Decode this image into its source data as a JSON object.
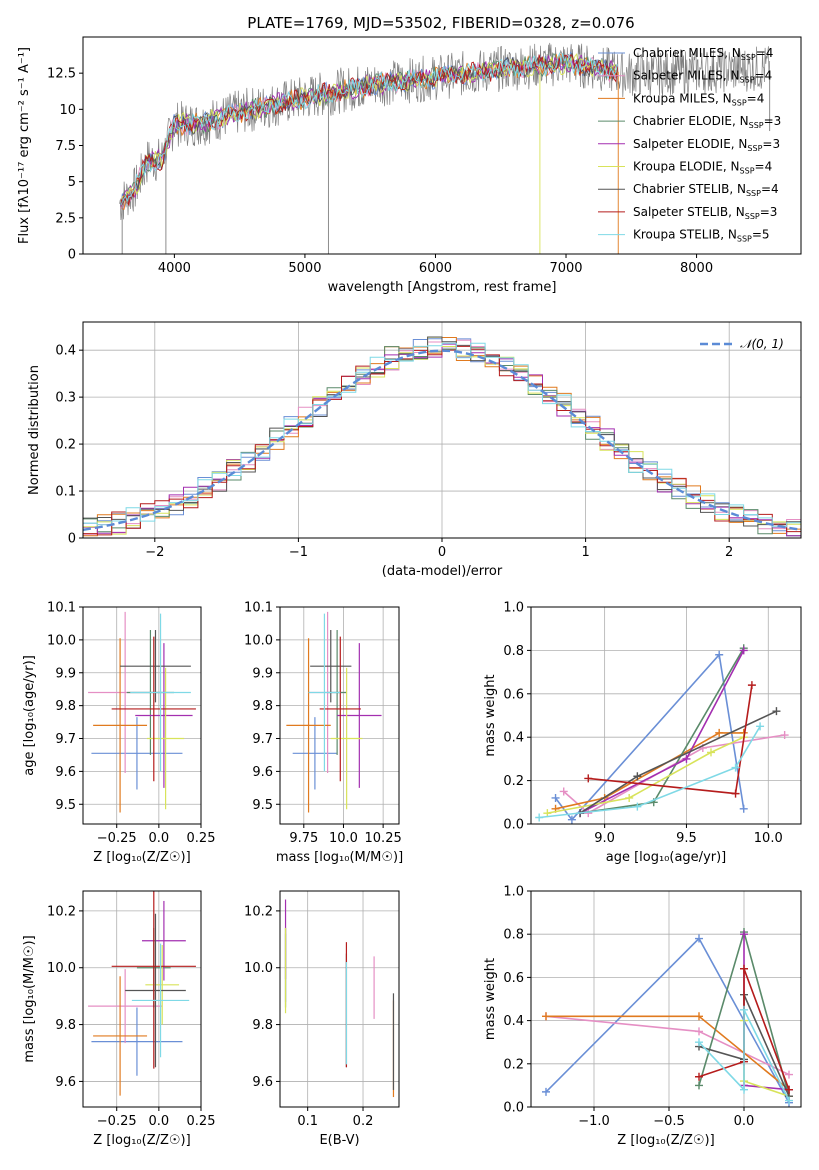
{
  "figure": {
    "title": "PLATE=1769, MJD=53502, FIBERID=0328, z=0.076"
  },
  "colors": {
    "Chabrier MILES": "#6a8fd6",
    "Salpeter MILES": "#e58fc4",
    "Kroupa MILES": "#e07a1f",
    "Chabrier ELODIE": "#5a8a6a",
    "Salpeter ELODIE": "#a32fb0",
    "Kroupa ELODIE": "#d8e35a",
    "Chabrier STELIB": "#555555",
    "Salpeter STELIB": "#b51c1c",
    "Kroupa STELIB": "#7fd9e6",
    "data": "#808080",
    "normal": "#5b8bd6"
  },
  "chart_data": [
    {
      "id": "spectrum",
      "type": "line",
      "xlabel": "wavelength [Angstrom, rest frame]",
      "ylabel": "Flux [f_λ 10^-17 erg cm^-2 s^-1 A^-1]",
      "xlim": [
        3300,
        8800
      ],
      "ylim": [
        0,
        15
      ],
      "xticks": [
        4000,
        5000,
        6000,
        7000,
        8000
      ],
      "yticks": [
        0.0,
        2.5,
        5.0,
        7.5,
        10.0,
        12.5
      ],
      "grid": false,
      "legend": "top-right",
      "legend_entries": [
        {
          "model": "Chabrier MILES",
          "nssp": "4"
        },
        {
          "model": "Salpeter MILES",
          "nssp": "4"
        },
        {
          "model": "Kroupa MILES",
          "nssp": "4"
        },
        {
          "model": "Chabrier ELODIE",
          "nssp": "3"
        },
        {
          "model": "Salpeter ELODIE",
          "nssp": "3"
        },
        {
          "model": "Kroupa ELODIE",
          "nssp": "4"
        },
        {
          "model": "Chabrier STELIB",
          "nssp": "4"
        },
        {
          "model": "Salpeter STELIB",
          "nssp": "3"
        },
        {
          "model": "Kroupa STELIB",
          "nssp": "5"
        }
      ],
      "continuum": {
        "x": [
          3580,
          3700,
          3800,
          3900,
          4000,
          4200,
          4500,
          5000,
          5500,
          6000,
          6500,
          7000,
          7400
        ],
        "y": [
          3.5,
          4.5,
          6.5,
          6.5,
          9.0,
          9.0,
          9.8,
          10.8,
          11.7,
          12.2,
          12.8,
          13.2,
          12.6
        ]
      },
      "features": [
        {
          "x": 3600,
          "y": 0.0,
          "series": "data"
        },
        {
          "x": 3935,
          "y": 0.0,
          "series": "data"
        },
        {
          "x": 5180,
          "y": 0.0,
          "series": "data"
        },
        {
          "x": 6800,
          "y": 0.0,
          "series": "Kroupa ELODIE"
        },
        {
          "x": 7400,
          "y": 0.0,
          "series": "Kroupa MILES"
        },
        {
          "x": 8560,
          "y": 8.5,
          "series": "data"
        }
      ]
    },
    {
      "id": "residuals",
      "type": "step",
      "xlabel": "(data-model)/error",
      "ylabel": "Normed distribution",
      "xlim": [
        -2.5,
        2.5
      ],
      "ylim": [
        0,
        0.46
      ],
      "xticks": [
        -2,
        -1,
        0,
        1,
        2
      ],
      "yticks": [
        0.0,
        0.1,
        0.2,
        0.3,
        0.4
      ],
      "grid": true,
      "legend": "top-right",
      "normal_label": "N(0,1)"
    },
    {
      "id": "age-vs-Z",
      "type": "errorbar",
      "xlabel": "Z [log10(Z/Z☉)]",
      "ylabel": "age [log10(age/yr)]",
      "xlim": [
        -0.45,
        0.25
      ],
      "ylim": [
        9.44,
        10.1
      ],
      "xticks": [
        -0.25,
        0.0,
        0.25
      ],
      "yticks": [
        9.5,
        9.6,
        9.7,
        9.8,
        9.9,
        10.0,
        10.1
      ],
      "grid": true,
      "points": [
        {
          "series": "Chabrier MILES",
          "x": -0.13,
          "xerr": 0.27,
          "y": 9.655,
          "yerr": 0.11
        },
        {
          "series": "Salpeter MILES",
          "x": -0.2,
          "xerr": 0.22,
          "y": 9.84,
          "yerr": 0.245
        },
        {
          "series": "Kroupa MILES",
          "x": -0.23,
          "xerr": 0.16,
          "y": 9.74,
          "yerr": 0.265
        },
        {
          "series": "Chabrier ELODIE",
          "x": -0.05,
          "xerr": 0.14,
          "y": 9.84,
          "yerr": 0.19
        },
        {
          "series": "Salpeter ELODIE",
          "x": 0.03,
          "xerr": 0.17,
          "y": 9.77,
          "yerr": 0.22
        },
        {
          "series": "Kroupa ELODIE",
          "x": 0.04,
          "xerr": 0.11,
          "y": 9.7,
          "yerr": 0.215
        },
        {
          "series": "Chabrier STELIB",
          "x": -0.02,
          "xerr": 0.21,
          "y": 9.92,
          "yerr": 0.11
        },
        {
          "series": "Salpeter STELIB",
          "x": -0.03,
          "xerr": 0.25,
          "y": 9.79,
          "yerr": 0.22
        },
        {
          "series": "Kroupa STELIB",
          "x": 0.01,
          "xerr": 0.18,
          "y": 9.84,
          "yerr": 0.24
        }
      ]
    },
    {
      "id": "age-vs-mass",
      "type": "errorbar",
      "xlabel": "mass [log10(M/M☉)]",
      "ylabel": "",
      "xlim": [
        9.6,
        10.35
      ],
      "ylim": [
        9.44,
        10.1
      ],
      "xticks": [
        9.75,
        10.0,
        10.25
      ],
      "yticks": [
        9.5,
        9.6,
        9.7,
        9.8,
        9.9,
        10.0,
        10.1
      ],
      "grid": true,
      "points": [
        {
          "series": "Chabrier MILES",
          "x": 9.82,
          "xerr": 0.14,
          "y": 9.655,
          "yerr": 0.11
        },
        {
          "series": "Salpeter MILES",
          "x": 9.9,
          "xerr": 0.12,
          "y": 9.84,
          "yerr": 0.245
        },
        {
          "series": "Kroupa MILES",
          "x": 9.78,
          "xerr": 0.14,
          "y": 9.74,
          "yerr": 0.265
        },
        {
          "series": "Chabrier ELODIE",
          "x": 9.96,
          "xerr": 0.06,
          "y": 9.84,
          "yerr": 0.19
        },
        {
          "series": "Salpeter ELODIE",
          "x": 10.1,
          "xerr": 0.14,
          "y": 9.77,
          "yerr": 0.22
        },
        {
          "series": "Kroupa ELODIE",
          "x": 10.02,
          "xerr": 0.1,
          "y": 9.7,
          "yerr": 0.215
        },
        {
          "series": "Chabrier STELIB",
          "x": 9.92,
          "xerr": 0.13,
          "y": 9.92,
          "yerr": 0.11
        },
        {
          "series": "Salpeter STELIB",
          "x": 9.98,
          "xerr": 0.13,
          "y": 9.79,
          "yerr": 0.22
        },
        {
          "series": "Kroupa STELIB",
          "x": 9.88,
          "xerr": 0.1,
          "y": 9.84,
          "yerr": 0.24
        }
      ]
    },
    {
      "id": "weight-vs-age",
      "type": "line",
      "xlabel": "age  [log10(age/yr)]",
      "ylabel": "mass weight",
      "xlim": [
        8.55,
        10.2
      ],
      "ylim": [
        0.0,
        1.0
      ],
      "xticks": [
        9.0,
        9.5,
        10.0
      ],
      "yticks": [
        0.0,
        0.2,
        0.4,
        0.6,
        0.8,
        1.0
      ],
      "grid": true,
      "series": [
        {
          "series": "Chabrier MILES",
          "x": [
            8.7,
            8.8,
            9.7,
            9.85
          ],
          "y": [
            0.12,
            0.02,
            0.78,
            0.07
          ]
        },
        {
          "series": "Salpeter MILES",
          "x": [
            8.75,
            8.9,
            9.6,
            10.1
          ],
          "y": [
            0.15,
            0.05,
            0.35,
            0.41
          ]
        },
        {
          "series": "Kroupa MILES",
          "x": [
            8.7,
            9.0,
            9.7,
            9.85
          ],
          "y": [
            0.07,
            0.12,
            0.42,
            0.42
          ]
        },
        {
          "series": "Chabrier ELODIE",
          "x": [
            8.85,
            9.3,
            9.85
          ],
          "y": [
            0.05,
            0.1,
            0.81
          ]
        },
        {
          "series": "Salpeter ELODIE",
          "x": [
            8.85,
            9.5,
            9.85
          ],
          "y": [
            0.05,
            0.3,
            0.8
          ]
        },
        {
          "series": "Kroupa ELODIE",
          "x": [
            8.65,
            9.15,
            9.65,
            9.85
          ],
          "y": [
            0.05,
            0.12,
            0.33,
            0.4
          ]
        },
        {
          "series": "Chabrier STELIB",
          "x": [
            8.85,
            9.2,
            10.05
          ],
          "y": [
            0.05,
            0.22,
            0.52
          ]
        },
        {
          "series": "Salpeter STELIB",
          "x": [
            8.9,
            9.8,
            9.9
          ],
          "y": [
            0.21,
            0.14,
            0.64
          ]
        },
        {
          "series": "Kroupa STELIB",
          "x": [
            8.6,
            9.2,
            9.8,
            9.95
          ],
          "y": [
            0.03,
            0.08,
            0.26,
            0.45
          ]
        }
      ]
    },
    {
      "id": "mass-vs-Z",
      "type": "errorbar",
      "xlabel": "Z [log10(Z/Z☉)]",
      "ylabel": "mass [log10(M/M☉)]",
      "xlim": [
        -0.45,
        0.25
      ],
      "ylim": [
        9.51,
        10.27
      ],
      "xticks": [
        -0.25,
        0.0,
        0.25
      ],
      "yticks": [
        9.6,
        9.8,
        10.0,
        10.2
      ],
      "grid": true,
      "points": [
        {
          "series": "Chabrier MILES",
          "x": -0.13,
          "xerr": 0.27,
          "y": 9.74,
          "yerr": 0.12
        },
        {
          "series": "Salpeter MILES",
          "x": -0.2,
          "xerr": 0.22,
          "y": 9.865,
          "yerr": 0.13
        },
        {
          "series": "Kroupa MILES",
          "x": -0.23,
          "xerr": 0.16,
          "y": 9.76,
          "yerr": 0.21
        },
        {
          "series": "Chabrier ELODIE",
          "x": -0.03,
          "xerr": 0.1,
          "y": 10.0,
          "yerr": 0.14
        },
        {
          "series": "Salpeter ELODIE",
          "x": 0.03,
          "xerr": 0.13,
          "y": 10.095,
          "yerr": 0.14
        },
        {
          "series": "Kroupa ELODIE",
          "x": 0.02,
          "xerr": 0.1,
          "y": 9.94,
          "yerr": 0.14
        },
        {
          "series": "Chabrier STELIB",
          "x": -0.02,
          "xerr": 0.18,
          "y": 9.92,
          "yerr": 0.27
        },
        {
          "series": "Salpeter STELIB",
          "x": -0.03,
          "xerr": 0.25,
          "y": 10.005,
          "yerr": 0.36
        },
        {
          "series": "Kroupa STELIB",
          "x": 0.01,
          "xerr": 0.17,
          "y": 9.885,
          "yerr": 0.2
        }
      ]
    },
    {
      "id": "mass-vs-ebv",
      "type": "errorbar",
      "xlabel": "E(B-V)",
      "ylabel": "",
      "xlim": [
        0.05,
        0.265
      ],
      "ylim": [
        9.51,
        10.27
      ],
      "xticks": [
        0.1,
        0.2
      ],
      "yticks": [
        9.6,
        9.8,
        10.0,
        10.2
      ],
      "grid": true,
      "points": [
        {
          "series": "Chabrier MILES",
          "x": 0.06,
          "y": 10.0,
          "yerr": 0.12
        },
        {
          "series": "Salpeter MILES",
          "x": 0.22,
          "y": 9.93,
          "yerr": 0.11
        },
        {
          "series": "Kroupa MILES",
          "x": 0.255,
          "y": 9.715,
          "yerr": 0.17
        },
        {
          "series": "Chabrier ELODIE",
          "x": 0.06,
          "y": 10.0,
          "yerr": 0.14
        },
        {
          "series": "Salpeter ELODIE",
          "x": 0.06,
          "y": 10.1,
          "yerr": 0.14
        },
        {
          "series": "Kroupa ELODIE",
          "x": 0.06,
          "y": 9.99,
          "yerr": 0.15
        },
        {
          "series": "Chabrier STELIB",
          "x": 0.17,
          "y": 9.85,
          "yerr": 0.2
        },
        {
          "series": "Salpeter STELIB",
          "x": 0.17,
          "y": 9.87,
          "yerr": 0.22
        },
        {
          "series": "Kroupa STELIB",
          "x": 0.17,
          "y": 9.84,
          "yerr": 0.18
        },
        {
          "series": "Chabrier STELIB",
          "x": 0.255,
          "y": 9.74,
          "yerr": 0.17
        }
      ]
    },
    {
      "id": "weight-vs-Z",
      "type": "line",
      "xlabel": "Z [log10(Z/Z☉)]",
      "ylabel": "mass weight",
      "xlim": [
        -1.42,
        0.38
      ],
      "ylim": [
        0.0,
        1.0
      ],
      "xticks": [
        -1.0,
        -0.5,
        0.0
      ],
      "yticks": [
        0.0,
        0.2,
        0.4,
        0.6,
        0.8,
        1.0
      ],
      "grid": true,
      "series": [
        {
          "series": "Chabrier MILES",
          "x": [
            -1.32,
            -0.3,
            0.3
          ],
          "y": [
            0.07,
            0.78,
            0.02
          ]
        },
        {
          "series": "Salpeter MILES",
          "x": [
            -1.32,
            -0.3,
            0.3
          ],
          "y": [
            0.42,
            0.35,
            0.15
          ]
        },
        {
          "series": "Kroupa MILES",
          "x": [
            -1.32,
            -0.3,
            0.3
          ],
          "y": [
            0.42,
            0.42,
            0.08
          ]
        },
        {
          "series": "Chabrier ELODIE",
          "x": [
            -0.3,
            0.0,
            0.3
          ],
          "y": [
            0.1,
            0.81,
            0.05
          ]
        },
        {
          "series": "Salpeter ELODIE",
          "x": [
            0.0,
            0.0,
            0.3
          ],
          "y": [
            0.8,
            0.1,
            0.08
          ]
        },
        {
          "series": "Kroupa ELODIE",
          "x": [
            0.0,
            0.0,
            0.3
          ],
          "y": [
            0.4,
            0.12,
            0.05
          ]
        },
        {
          "series": "Chabrier STELIB",
          "x": [
            -0.3,
            0.0,
            0.0,
            0.3
          ],
          "y": [
            0.28,
            0.22,
            0.52,
            0.05
          ]
        },
        {
          "series": "Salpeter STELIB",
          "x": [
            -0.3,
            0.0,
            0.0,
            0.3
          ],
          "y": [
            0.14,
            0.21,
            0.64,
            0.08
          ]
        },
        {
          "series": "Kroupa STELIB",
          "x": [
            -0.3,
            0.0,
            0.0,
            0.3
          ],
          "y": [
            0.3,
            0.08,
            0.45,
            0.03
          ]
        }
      ]
    }
  ]
}
